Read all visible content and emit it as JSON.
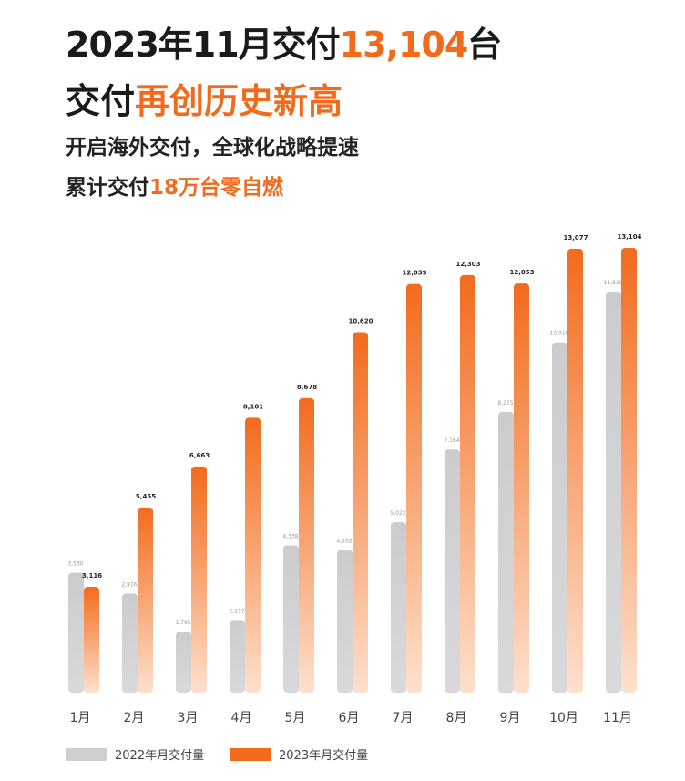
{
  "header": {
    "title_a": "2023年11月交付",
    "title_num": "13,104",
    "title_b": "台",
    "line2_a": "交付",
    "line2_hl": "再创历史新高",
    "sub1": "开启海外交付，全球化战略提速",
    "sub2_a": "累计交付",
    "sub2_hl": "18万台零自燃"
  },
  "colors": {
    "accent": "#f26b1d",
    "gray": "#cfcfd1"
  },
  "chart_data": {
    "type": "bar",
    "categories": [
      "1月",
      "2月",
      "3月",
      "4月",
      "5月",
      "6月",
      "7月",
      "8月",
      "9月",
      "10月",
      "11月"
    ],
    "series": [
      {
        "name": "2022年月交付量",
        "values": [
          3530,
          2916,
          1795,
          2137,
          4338,
          4202,
          5022,
          7164,
          8275,
          10319,
          11818
        ],
        "labels": [
          "3,530",
          "2,916",
          "1,795",
          "2,137",
          "4,338",
          "4,202",
          "5,022",
          "7,164",
          "8,275",
          "10,319",
          "11,818"
        ]
      },
      {
        "name": "2023年月交付量",
        "values": [
          3116,
          5455,
          6663,
          8101,
          8678,
          10620,
          12039,
          12303,
          12053,
          13077,
          13104
        ],
        "labels": [
          "3,116",
          "5,455",
          "6,663",
          "8,101",
          "8,678",
          "10,620",
          "12,039",
          "12,303",
          "12,053",
          "13,077",
          "13,104"
        ]
      }
    ],
    "ylim": [
      0,
      13104
    ],
    "legend": "bottom-left",
    "grid": false
  }
}
